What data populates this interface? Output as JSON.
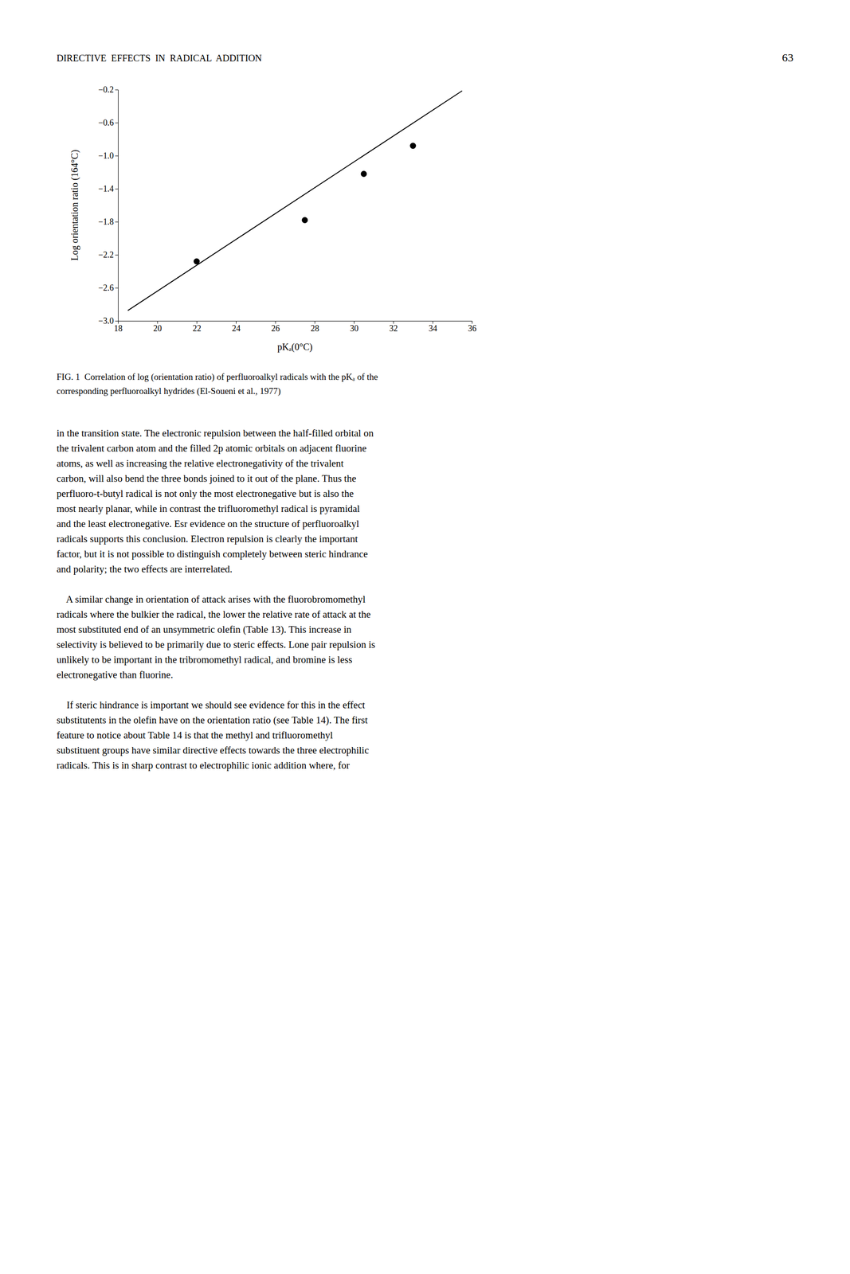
{
  "page": {
    "header": "DIRECTIVE  EFFECTS  IN  RADICAL  ADDITION",
    "page_number": "63",
    "caption": [
      "FIG. 1  Correlation of log (orientation ratio) of perfluoroalkyl radicals with the pKₐ of the",
      "corresponding perfluoroalkyl hydrides (El-Soueni et al., 1977)"
    ],
    "body": [
      [
        "in the transition state. The electronic repulsion between the half-filled orbital on",
        "the trivalent carbon atom and the filled 2p atomic orbitals on adjacent fluorine",
        "atoms, as well as increasing the relative electronegativity of the trivalent",
        "carbon, will also bend the three bonds joined to it out of the plane. Thus the",
        "perfluoro-t-butyl radical is not only the most electronegative but is also the",
        "most nearly planar, while in contrast the trifluoromethyl radical is pyramidal",
        "and the least electronegative. Esr evidence on the structure of perfluoroalkyl",
        "radicals supports this conclusion. Electron repulsion is clearly the important",
        "factor, but it is not possible to distinguish completely between steric hindrance",
        "and polarity; the two effects are interrelated."
      ],
      [
        "    A similar change in orientation of attack arises with the fluorobromomethyl",
        "radicals where the bulkier the radical, the lower the relative rate of attack at the",
        "most substituted end of an unsymmetric olefin (Table 13). This increase in",
        "selectivity is believed to be primarily due to steric effects. Lone pair repulsion is",
        "unlikely to be important in the tribromomethyl radical, and bromine is less",
        "electronegative than fluorine."
      ],
      [
        "    If steric hindrance is important we should see evidence for this in the effect",
        "substitutents in the olefin have on the orientation ratio (see Table 14). The first",
        "feature to notice about Table 14 is that the methyl and trifluoromethyl",
        "substituent groups have similar directive effects towards the three electrophilic",
        "radicals. This is in sharp contrast to electrophilic ionic addition where, for"
      ]
    ]
  },
  "chart_data": {
    "type": "scatter",
    "x_label": "pKₐ(0°C)",
    "y_label": "Log orientation ratio (164°C)",
    "xlim": [
      18,
      36
    ],
    "ylim": [
      -3.0,
      -0.2
    ],
    "xticks": [
      18,
      20,
      22,
      24,
      26,
      28,
      30,
      32,
      34,
      36
    ],
    "yticks": [
      {
        "value": -3.0,
        "label": "−3.0"
      },
      {
        "value": -2.6,
        "label": "−2.6"
      },
      {
        "value": -2.2,
        "label": "−2.2"
      },
      {
        "value": -1.8,
        "label": "−1.8"
      },
      {
        "value": -1.4,
        "label": "−1.4"
      },
      {
        "value": -1.0,
        "label": "−1.0"
      },
      {
        "value": -0.6,
        "label": "−0.6"
      },
      {
        "value": -0.2,
        "label": "−0.2"
      }
    ],
    "grid": false,
    "series": [
      {
        "type": "scatter",
        "color": "#000000",
        "marker": "circle",
        "x": [
          22.0,
          27.5,
          30.5,
          33.0
        ],
        "values": [
          -2.28,
          -1.78,
          -1.22,
          -0.88
        ]
      },
      {
        "type": "line",
        "color": "#000000",
        "line_style": "solid",
        "x": [
          18.5,
          35.5
        ],
        "values": [
          -2.87475,
          -0.21425
        ]
      }
    ]
  }
}
